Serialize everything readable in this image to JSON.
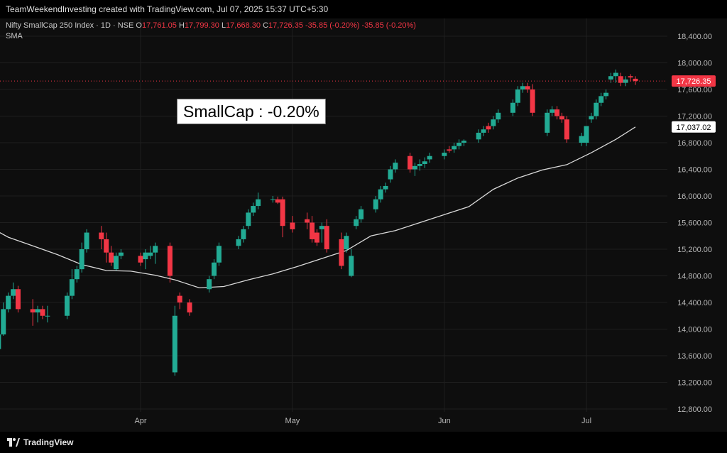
{
  "header": {
    "text": "TeamWeekendInvesting created with TradingView.com, Jul 07, 2025 15:37 UTC+5:30"
  },
  "legend": {
    "symbol": "Nifty SmallCap 250 Index · 1D · NSE",
    "o_label": "O",
    "o_value": "17,761.05",
    "h_label": "H",
    "h_value": "17,799.30",
    "l_label": "L",
    "l_value": "17,668.30",
    "c_label": "C",
    "c_value": "17,726.35",
    "change1": "-35.85 (-0.20%)",
    "change2": "-35.85 (-0.20%)",
    "indicator": "SMA"
  },
  "annotation": {
    "text": "SmallCap : -0.20%"
  },
  "footer": {
    "brand": "TradingView"
  },
  "colors": {
    "up": "#22ab94",
    "down": "#f23645",
    "sma": "#d9d9d9",
    "grid": "#1f1f1f"
  },
  "chart_data": {
    "type": "candlestick",
    "y_ticks": [
      "18,400.00",
      "18,000.00",
      "17,600.00",
      "17,200.00",
      "16,800.00",
      "16,400.00",
      "16,000.00",
      "15,600.00",
      "15,200.00",
      "14,800.00",
      "14,400.00",
      "14,000.00",
      "13,600.00",
      "13,200.00",
      "12,800.00"
    ],
    "x_ticks": [
      {
        "label": "Apr",
        "date": "2025-04-01"
      },
      {
        "label": "May",
        "date": "2025-05-02"
      },
      {
        "label": "Jun",
        "date": "2025-06-02"
      },
      {
        "label": "Jul",
        "date": "2025-07-01"
      }
    ],
    "price_label": "17,726.35",
    "sma_label": "17,037.02",
    "candles": [
      {
        "date": "2025-03-03",
        "o": 13700,
        "h": 13950,
        "l": 13550,
        "c": 13920
      },
      {
        "date": "2025-03-04",
        "o": 13920,
        "h": 14400,
        "l": 13900,
        "c": 14300
      },
      {
        "date": "2025-03-05",
        "o": 14300,
        "h": 14550,
        "l": 14250,
        "c": 14500
      },
      {
        "date": "2025-03-06",
        "o": 14500,
        "h": 14700,
        "l": 14450,
        "c": 14600
      },
      {
        "date": "2025-03-07",
        "o": 14600,
        "h": 14650,
        "l": 14250,
        "c": 14300
      },
      {
        "date": "2025-03-10",
        "o": 14300,
        "h": 14450,
        "l": 14050,
        "c": 14250
      },
      {
        "date": "2025-03-11",
        "o": 14250,
        "h": 14350,
        "l": 14100,
        "c": 14300
      },
      {
        "date": "2025-03-12",
        "o": 14300,
        "h": 14350,
        "l": 14150,
        "c": 14200
      },
      {
        "date": "2025-03-13",
        "o": 14200,
        "h": 14350,
        "l": 14100,
        "c": 14200
      },
      {
        "date": "2025-03-17",
        "o": 14200,
        "h": 14550,
        "l": 14150,
        "c": 14500
      },
      {
        "date": "2025-03-18",
        "o": 14500,
        "h": 14900,
        "l": 14450,
        "c": 14750
      },
      {
        "date": "2025-03-19",
        "o": 14750,
        "h": 14950,
        "l": 14700,
        "c": 14900
      },
      {
        "date": "2025-03-20",
        "o": 14900,
        "h": 15300,
        "l": 14850,
        "c": 15200
      },
      {
        "date": "2025-03-21",
        "o": 15200,
        "h": 15500,
        "l": 15150,
        "c": 15450
      },
      {
        "date": "2025-03-24",
        "o": 15450,
        "h": 15550,
        "l": 15200,
        "c": 15350
      },
      {
        "date": "2025-03-25",
        "o": 15350,
        "h": 15450,
        "l": 15000,
        "c": 15150
      },
      {
        "date": "2025-03-26",
        "o": 15150,
        "h": 15250,
        "l": 14950,
        "c": 15000
      },
      {
        "date": "2025-03-27",
        "o": 14900,
        "h": 15150,
        "l": 14880,
        "c": 15100
      },
      {
        "date": "2025-03-28",
        "o": 15100,
        "h": 15200,
        "l": 15050,
        "c": 15150
      },
      {
        "date": "2025-04-01",
        "o": 15100,
        "h": 15150,
        "l": 14950,
        "c": 15000
      },
      {
        "date": "2025-04-02",
        "o": 15050,
        "h": 15200,
        "l": 14900,
        "c": 15150
      },
      {
        "date": "2025-04-03",
        "o": 15100,
        "h": 15250,
        "l": 15050,
        "c": 15150
      },
      {
        "date": "2025-04-04",
        "o": 15150,
        "h": 15300,
        "l": 14980,
        "c": 15250
      },
      {
        "date": "2025-04-07",
        "o": 15250,
        "h": 15300,
        "l": 14700,
        "c": 14800
      },
      {
        "date": "2025-04-08",
        "o": 13350,
        "h": 14350,
        "l": 13300,
        "c": 14200
      },
      {
        "date": "2025-04-09",
        "o": 14500,
        "h": 14550,
        "l": 14300,
        "c": 14400
      },
      {
        "date": "2025-04-11",
        "o": 14400,
        "h": 14450,
        "l": 14200,
        "c": 14250
      },
      {
        "date": "2025-04-15",
        "o": 14600,
        "h": 14800,
        "l": 14550,
        "c": 14750
      },
      {
        "date": "2025-04-16",
        "o": 14800,
        "h": 15050,
        "l": 14750,
        "c": 15000
      },
      {
        "date": "2025-04-17",
        "o": 15000,
        "h": 15300,
        "l": 14950,
        "c": 15250
      },
      {
        "date": "2025-04-21",
        "o": 15250,
        "h": 15400,
        "l": 15200,
        "c": 15350
      },
      {
        "date": "2025-04-22",
        "o": 15350,
        "h": 15550,
        "l": 15300,
        "c": 15500
      },
      {
        "date": "2025-04-23",
        "o": 15550,
        "h": 15800,
        "l": 15500,
        "c": 15750
      },
      {
        "date": "2025-04-24",
        "o": 15750,
        "h": 15900,
        "l": 15700,
        "c": 15850
      },
      {
        "date": "2025-04-25",
        "o": 15850,
        "h": 16050,
        "l": 15800,
        "c": 15950
      },
      {
        "date": "2025-04-28",
        "o": 15950,
        "h": 16000,
        "l": 15900,
        "c": 15950
      },
      {
        "date": "2025-04-29",
        "o": 15950,
        "h": 15990,
        "l": 15880,
        "c": 15900
      },
      {
        "date": "2025-04-30",
        "o": 15950,
        "h": 15990,
        "l": 15380,
        "c": 15550
      },
      {
        "date": "2025-05-02",
        "o": 15600,
        "h": 15700,
        "l": 15450,
        "c": 15500
      },
      {
        "date": "2025-05-05",
        "o": 15650,
        "h": 15750,
        "l": 15500,
        "c": 15600
      },
      {
        "date": "2025-05-06",
        "o": 15600,
        "h": 15700,
        "l": 15300,
        "c": 15350
      },
      {
        "date": "2025-05-07",
        "o": 15450,
        "h": 15500,
        "l": 15250,
        "c": 15300
      },
      {
        "date": "2025-05-08",
        "o": 15500,
        "h": 15600,
        "l": 15300,
        "c": 15550
      },
      {
        "date": "2025-05-09",
        "o": 15550,
        "h": 15650,
        "l": 15150,
        "c": 15200
      },
      {
        "date": "2025-05-12",
        "o": 15350,
        "h": 15450,
        "l": 14900,
        "c": 14950
      },
      {
        "date": "2025-05-13",
        "o": 15200,
        "h": 15450,
        "l": 15150,
        "c": 15400
      },
      {
        "date": "2025-05-14",
        "o": 14800,
        "h": 15200,
        "l": 14780,
        "c": 15100
      },
      {
        "date": "2025-05-15",
        "o": 15550,
        "h": 15700,
        "l": 15500,
        "c": 15650
      },
      {
        "date": "2025-05-16",
        "o": 15650,
        "h": 15850,
        "l": 15600,
        "c": 15800
      },
      {
        "date": "2025-05-19",
        "o": 15800,
        "h": 16000,
        "l": 15750,
        "c": 15950
      },
      {
        "date": "2025-05-20",
        "o": 15950,
        "h": 16150,
        "l": 15900,
        "c": 16100
      },
      {
        "date": "2025-05-21",
        "o": 16100,
        "h": 16200,
        "l": 16050,
        "c": 16150
      },
      {
        "date": "2025-05-22",
        "o": 16250,
        "h": 16450,
        "l": 16200,
        "c": 16400
      },
      {
        "date": "2025-05-23",
        "o": 16400,
        "h": 16550,
        "l": 16350,
        "c": 16500
      },
      {
        "date": "2025-05-26",
        "o": 16600,
        "h": 16650,
        "l": 16350,
        "c": 16400
      },
      {
        "date": "2025-05-27",
        "o": 16400,
        "h": 16500,
        "l": 16300,
        "c": 16450
      },
      {
        "date": "2025-05-28",
        "o": 16450,
        "h": 16550,
        "l": 16380,
        "c": 16480
      },
      {
        "date": "2025-05-29",
        "o": 16480,
        "h": 16580,
        "l": 16420,
        "c": 16520
      },
      {
        "date": "2025-05-30",
        "o": 16550,
        "h": 16650,
        "l": 16500,
        "c": 16600
      },
      {
        "date": "2025-06-02",
        "o": 16600,
        "h": 16700,
        "l": 16550,
        "c": 16650
      },
      {
        "date": "2025-06-03",
        "o": 16700,
        "h": 16750,
        "l": 16650,
        "c": 16680
      },
      {
        "date": "2025-06-04",
        "o": 16700,
        "h": 16800,
        "l": 16650,
        "c": 16750
      },
      {
        "date": "2025-06-05",
        "o": 16750,
        "h": 16850,
        "l": 16700,
        "c": 16800
      },
      {
        "date": "2025-06-06",
        "o": 16800,
        "h": 16850,
        "l": 16750,
        "c": 16830
      },
      {
        "date": "2025-06-09",
        "o": 16850,
        "h": 17000,
        "l": 16800,
        "c": 16950
      },
      {
        "date": "2025-06-10",
        "o": 16950,
        "h": 17050,
        "l": 16900,
        "c": 17000
      },
      {
        "date": "2025-06-11",
        "o": 17050,
        "h": 17100,
        "l": 16950,
        "c": 17000
      },
      {
        "date": "2025-06-12",
        "o": 17050,
        "h": 17200,
        "l": 17000,
        "c": 17150
      },
      {
        "date": "2025-06-13",
        "o": 17150,
        "h": 17300,
        "l": 17100,
        "c": 17250
      },
      {
        "date": "2025-06-16",
        "o": 17250,
        "h": 17450,
        "l": 17200,
        "c": 17400
      },
      {
        "date": "2025-06-17",
        "o": 17400,
        "h": 17650,
        "l": 17350,
        "c": 17600
      },
      {
        "date": "2025-06-18",
        "o": 17600,
        "h": 17700,
        "l": 17550,
        "c": 17650
      },
      {
        "date": "2025-06-19",
        "o": 17650,
        "h": 17700,
        "l": 17550,
        "c": 17600
      },
      {
        "date": "2025-06-20",
        "o": 17600,
        "h": 17680,
        "l": 17200,
        "c": 17250
      },
      {
        "date": "2025-06-23",
        "o": 16950,
        "h": 17300,
        "l": 16900,
        "c": 17250
      },
      {
        "date": "2025-06-24",
        "o": 17250,
        "h": 17350,
        "l": 17200,
        "c": 17300
      },
      {
        "date": "2025-06-25",
        "o": 17300,
        "h": 17350,
        "l": 17150,
        "c": 17200
      },
      {
        "date": "2025-06-26",
        "o": 17200,
        "h": 17250,
        "l": 17100,
        "c": 17150
      },
      {
        "date": "2025-06-27",
        "o": 17150,
        "h": 17200,
        "l": 16800,
        "c": 16850
      },
      {
        "date": "2025-06-30",
        "o": 16800,
        "h": 16950,
        "l": 16750,
        "c": 16900
      },
      {
        "date": "2025-07-01",
        "o": 16800,
        "h": 17050,
        "l": 16750,
        "c": 17050
      },
      {
        "date": "2025-07-02",
        "o": 17150,
        "h": 17250,
        "l": 17100,
        "c": 17200
      },
      {
        "date": "2025-07-03",
        "o": 17200,
        "h": 17450,
        "l": 17150,
        "c": 17400
      },
      {
        "date": "2025-07-04",
        "o": 17400,
        "h": 17550,
        "l": 17350,
        "c": 17500
      },
      {
        "date": "2025-07-05",
        "o": 17500,
        "h": 17600,
        "l": 17450,
        "c": 17550
      },
      {
        "date": "2025-07-06",
        "o": 17750,
        "h": 17850,
        "l": 17700,
        "c": 17800
      },
      {
        "date": "2025-07-07",
        "o": 17800,
        "h": 17900,
        "l": 17700,
        "c": 17850
      },
      {
        "date": "2025-07-08",
        "o": 17800,
        "h": 17850,
        "l": 17650,
        "c": 17700
      },
      {
        "date": "2025-07-09",
        "o": 17700,
        "h": 17800,
        "l": 17650,
        "c": 17750
      },
      {
        "date": "2025-07-10",
        "o": 17800,
        "h": 17830,
        "l": 17720,
        "c": 17780
      },
      {
        "date": "2025-07-11",
        "o": 17761,
        "h": 17799,
        "l": 17668,
        "c": 17726
      }
    ],
    "sma": [
      {
        "date": "2025-02-28",
        "v": 15580
      },
      {
        "date": "2025-03-05",
        "v": 15380
      },
      {
        "date": "2025-03-10",
        "v": 15250
      },
      {
        "date": "2025-03-15",
        "v": 15120
      },
      {
        "date": "2025-03-20",
        "v": 14970
      },
      {
        "date": "2025-03-25",
        "v": 14880
      },
      {
        "date": "2025-03-30",
        "v": 14870
      },
      {
        "date": "2025-04-04",
        "v": 14810
      },
      {
        "date": "2025-04-08",
        "v": 14740
      },
      {
        "date": "2025-04-13",
        "v": 14620
      },
      {
        "date": "2025-04-18",
        "v": 14640
      },
      {
        "date": "2025-04-23",
        "v": 14740
      },
      {
        "date": "2025-04-28",
        "v": 14830
      },
      {
        "date": "2025-05-03",
        "v": 14940
      },
      {
        "date": "2025-05-08",
        "v": 15060
      },
      {
        "date": "2025-05-13",
        "v": 15180
      },
      {
        "date": "2025-05-18",
        "v": 15400
      },
      {
        "date": "2025-05-23",
        "v": 15480
      },
      {
        "date": "2025-05-28",
        "v": 15600
      },
      {
        "date": "2025-06-02",
        "v": 15720
      },
      {
        "date": "2025-06-07",
        "v": 15840
      },
      {
        "date": "2025-06-12",
        "v": 16100
      },
      {
        "date": "2025-06-17",
        "v": 16270
      },
      {
        "date": "2025-06-22",
        "v": 16390
      },
      {
        "date": "2025-06-27",
        "v": 16470
      },
      {
        "date": "2025-07-02",
        "v": 16650
      },
      {
        "date": "2025-07-07",
        "v": 16850
      },
      {
        "date": "2025-07-11",
        "v": 17037
      }
    ]
  }
}
